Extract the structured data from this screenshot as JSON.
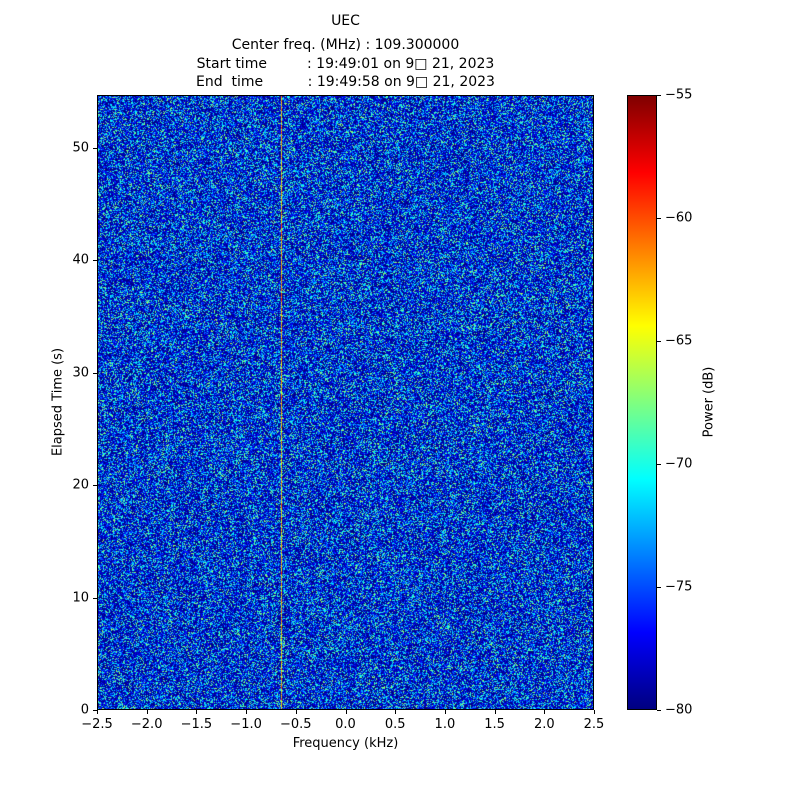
{
  "figure": {
    "title": "UEC",
    "subtitle_lines": [
      "Center freq. (MHz) : 109.300000",
      "Start time         : 19:49:01 on 9□ 21, 2023",
      "End  time          : 19:49:58 on 9□ 21, 2023"
    ]
  },
  "chart_data": {
    "type": "heatmap",
    "title": "UEC",
    "center_freq_mhz": "109.300000",
    "start_time": "19:49:01 on 9□ 21, 2023",
    "end_time": "19:49:58 on 9□ 21, 2023",
    "xlabel": "Frequency (kHz)",
    "ylabel": "Elapsed Time (s)",
    "xlim": [
      -2.5,
      2.5
    ],
    "ylim": [
      0,
      54.7
    ],
    "x_ticks": [
      "−2.5",
      "−2.0",
      "−1.5",
      "−1.0",
      "−0.5",
      "0.0",
      "0.5",
      "1.0",
      "1.5",
      "2.0",
      "2.5"
    ],
    "y_ticks": [
      "0",
      "10",
      "20",
      "30",
      "40",
      "50"
    ],
    "colormap": "jet",
    "colorbar": {
      "label": "Power (dB)",
      "vmin": -80,
      "vmax": -55,
      "ticks": [
        {
          "value": -55,
          "label": "−55"
        },
        {
          "value": -60,
          "label": "−60"
        },
        {
          "value": -65,
          "label": "−65"
        },
        {
          "value": -70,
          "label": "−70"
        },
        {
          "value": -75,
          "label": "−75"
        },
        {
          "value": -80,
          "label": "−80"
        }
      ]
    },
    "data_summary": "Spectrogram/waterfall of broadband noise; power mostly between −80 and −70 dB (blue), sparse brighter cyan speckles near −68 dB, and one faint narrowband carrier line visible across all elapsed time at about −0.65 kHz.",
    "vline_freq_khz": -0.65,
    "noise": {
      "seed": 42,
      "scale_t": 0.55,
      "exponent": 2.4
    }
  }
}
